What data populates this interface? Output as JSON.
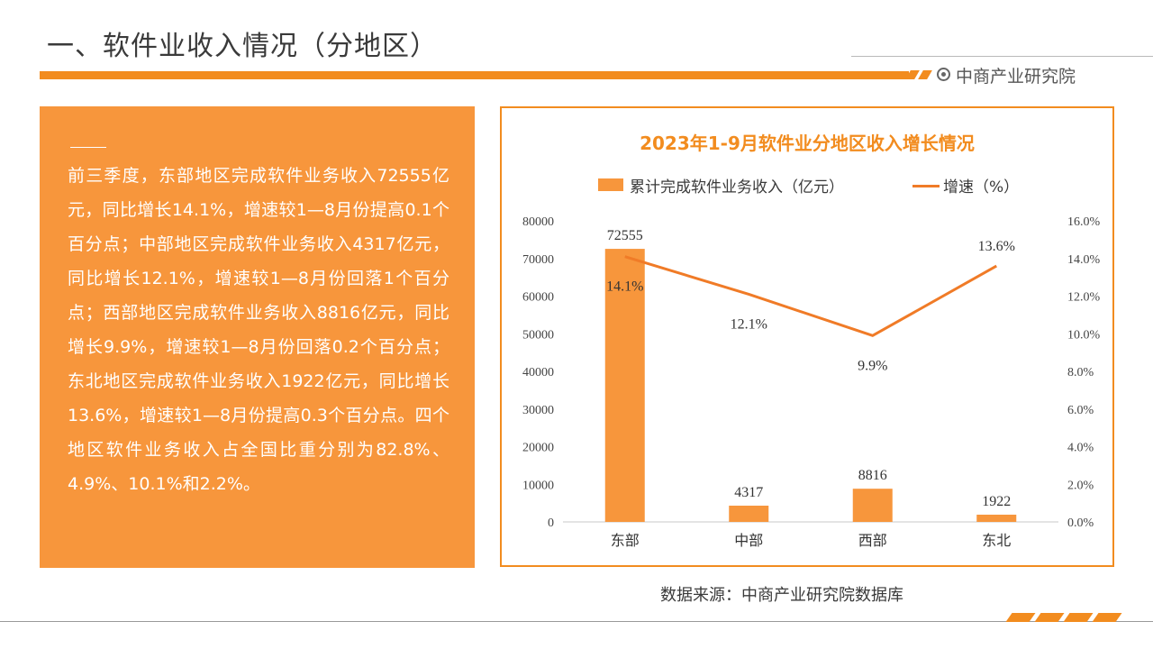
{
  "page": {
    "title": "一、软件业收入情况（分地区）",
    "brand": "中商产业研究院",
    "description": "前三季度，东部地区完成软件业务收入72555亿元，同比增长14.1%，增速较1—8月份提高0.1个百分点；中部地区完成软件业务收入4317亿元，同比增长12.1%，增速较1—8月份回落1个百分点；西部地区完成软件业务收入8816亿元，同比增长9.9%，增速较1—8月份回落0.2个百分点；东北地区完成软件业务收入1922亿元，同比增长13.6%，增速较1—8月份提高0.3个百分点。四个地区软件业务收入占全国比重分别为82.8%、4.9%、10.1%和2.2%。",
    "source": "数据来源：中商产业研究院数据库"
  },
  "colors": {
    "accent": "#f28c1f",
    "panel": "#f7963c",
    "bar": "#f7963c",
    "line": "#f07b27"
  },
  "chart_data": {
    "type": "bar",
    "title": "2023年1-9月软件业分地区收入增长情况",
    "categories": [
      "东部",
      "中部",
      "西部",
      "东北"
    ],
    "series": [
      {
        "name": "累计完成软件业务收入（亿元）",
        "type": "bar",
        "axis": "left",
        "values": [
          72555,
          4317,
          8816,
          1922
        ],
        "labels": [
          "72555",
          "4317",
          "8816",
          "1922"
        ]
      },
      {
        "name": "增速（%）",
        "type": "line",
        "axis": "right",
        "values": [
          14.1,
          12.1,
          9.9,
          13.6
        ],
        "labels": [
          "14.1%",
          "12.1%",
          "9.9%",
          "13.6%"
        ]
      }
    ],
    "y_left": {
      "range": [
        0,
        80000
      ],
      "ticks": [
        "0",
        "10000",
        "20000",
        "30000",
        "40000",
        "50000",
        "60000",
        "70000",
        "80000"
      ]
    },
    "y_right": {
      "range": [
        0,
        16
      ],
      "ticks": [
        "0.0%",
        "2.0%",
        "4.0%",
        "6.0%",
        "8.0%",
        "10.0%",
        "12.0%",
        "14.0%",
        "16.0%"
      ]
    },
    "grid": false,
    "legend_position": "top"
  }
}
